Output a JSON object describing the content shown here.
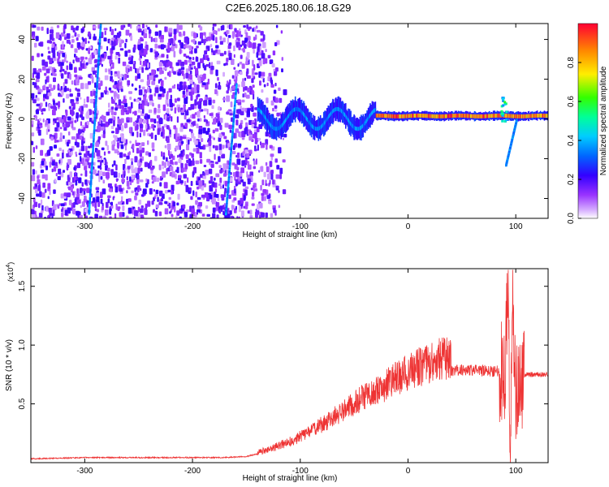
{
  "title": "C2E6.2025.180.06.18.G29",
  "colors": {
    "snr_line": "#ee3333",
    "spectrogram_low": "#7a00ff",
    "spectrogram_high": "#ff0000"
  },
  "chart_data": [
    {
      "type": "heatmap",
      "title": "C2E6.2025.180.06.18.G29",
      "xlabel": "Height of straight line (km)",
      "ylabel": "Frequency (Hz)",
      "xlim": [
        -350,
        130
      ],
      "ylim": [
        -50,
        48
      ],
      "xticks": [
        -300,
        -200,
        -100,
        0,
        100
      ],
      "yticks": [
        -40,
        -20,
        0,
        20,
        40
      ],
      "colorbar": {
        "label": "Normalized spectral amplitude",
        "range": [
          0,
          1
        ],
        "ticks": [
          "0.0",
          "0.2",
          "0.4",
          "0.6",
          "0.8"
        ],
        "colormap": "rainbow (white-violet-blue-cyan-green-yellow-red)"
      },
      "features": [
        {
          "kind": "broadband-noise",
          "x_range": [
            -350,
            -115
          ],
          "amplitude": 0.15
        },
        {
          "kind": "tone",
          "x_range": [
            -140,
            -30
          ],
          "frequency": 0,
          "spread_hz": 10,
          "amplitude": 0.4
        },
        {
          "kind": "tone",
          "x_range": [
            -30,
            130
          ],
          "frequency": 1.5,
          "spread_hz": 4,
          "amplitude": 0.95
        },
        {
          "kind": "streak",
          "x_range": [
            -297,
            -286
          ],
          "frequency_range": [
            -48,
            48
          ],
          "amplitude": 0.3
        },
        {
          "kind": "streak",
          "x_range": [
            -170,
            -160
          ],
          "frequency_range": [
            -48,
            18
          ],
          "amplitude": 0.3
        },
        {
          "kind": "spike",
          "x": 88,
          "frequency_range": [
            -2,
            12
          ],
          "amplitude": 0.6
        },
        {
          "kind": "tail",
          "x_range": [
            90,
            100
          ],
          "frequency_range": [
            -23,
            0
          ],
          "amplitude": 0.3
        }
      ]
    },
    {
      "type": "line",
      "xlabel": "Height of straight line (km)",
      "ylabel": "SNR (10 * v/v)",
      "yscale_label": "(x10",
      "yscale_exponent": "4",
      "xlim": [
        -350,
        130
      ],
      "ylim": [
        0,
        1.65
      ],
      "xticks": [
        -300,
        -200,
        -100,
        0,
        100
      ],
      "yticks": [
        "0.5",
        "1.0",
        "1.5"
      ],
      "series": [
        {
          "x": [
            -350,
            -300,
            -250,
            -200,
            -170,
            -150,
            -130,
            -110,
            -90,
            -70,
            -50,
            -30,
            -10,
            10,
            30,
            50,
            70,
            85,
            90,
            93,
            95,
            97,
            100,
            105,
            110,
            130
          ],
          "values": [
            0.03,
            0.04,
            0.04,
            0.04,
            0.04,
            0.05,
            0.09,
            0.15,
            0.23,
            0.33,
            0.44,
            0.53,
            0.63,
            0.71,
            0.77,
            0.79,
            0.78,
            0.78,
            0.8,
            1.45,
            0.05,
            1.5,
            0.55,
            0.73,
            0.75,
            0.75
          ]
        }
      ]
    }
  ]
}
